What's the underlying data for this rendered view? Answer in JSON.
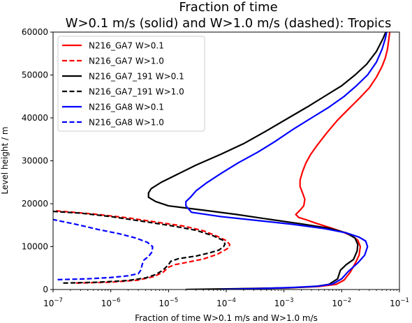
{
  "chart_data": {
    "type": "line",
    "title": "Fraction of time",
    "subtitle": "W>0.1 m/s (solid) and W>1.0 m/s  (dashed): Tropics",
    "xlabel": "Fraction of time W>0.1 m/s and W>1.0 m/s",
    "ylabel": "Level height / m",
    "xscale": "log",
    "xlim": [
      1e-07,
      0.1
    ],
    "ylim": [
      0,
      60000
    ],
    "xticks": [
      {
        "value": 1e-07,
        "base": "10",
        "exp": "−7"
      },
      {
        "value": 1e-06,
        "base": "10",
        "exp": "−6"
      },
      {
        "value": 1e-05,
        "base": "10",
        "exp": "−5"
      },
      {
        "value": 0.0001,
        "base": "10",
        "exp": "−4"
      },
      {
        "value": 0.001,
        "base": "10",
        "exp": "−3"
      },
      {
        "value": 0.01,
        "base": "10",
        "exp": "−2"
      },
      {
        "value": 0.1,
        "base": "10",
        "exp": "−1"
      }
    ],
    "yticks": [
      {
        "value": 0,
        "label": "0"
      },
      {
        "value": 10000,
        "label": "10000"
      },
      {
        "value": 20000,
        "label": "20000"
      },
      {
        "value": 30000,
        "label": "30000"
      },
      {
        "value": 40000,
        "label": "40000"
      },
      {
        "value": 50000,
        "label": "50000"
      },
      {
        "value": 60000,
        "label": "60000"
      }
    ],
    "grid": false,
    "legend_position": "upper-left",
    "series": [
      {
        "name": "N216_GA7 W>0.1",
        "color": "#ff0000",
        "dash": "solid",
        "points": [
          [
            5e-05,
            0
          ],
          [
            0.00025,
            200
          ],
          [
            0.0013,
            400
          ],
          [
            0.004,
            700
          ],
          [
            0.008,
            1200
          ],
          [
            0.011,
            2200
          ],
          [
            0.014,
            4000
          ],
          [
            0.017,
            6000
          ],
          [
            0.02,
            8000
          ],
          [
            0.021,
            10000
          ],
          [
            0.019,
            11500
          ],
          [
            0.015,
            12500
          ],
          [
            0.01,
            13500
          ],
          [
            0.006,
            14500
          ],
          [
            0.0035,
            15500
          ],
          [
            0.0025,
            16200
          ],
          [
            0.0018,
            16800
          ],
          [
            0.0016,
            17500
          ],
          [
            0.0019,
            18500
          ],
          [
            0.0022,
            19500
          ],
          [
            0.0023,
            21000
          ],
          [
            0.0021,
            22500
          ],
          [
            0.0019,
            24000
          ],
          [
            0.0019,
            25500
          ],
          [
            0.0021,
            27500
          ],
          [
            0.0024,
            29500
          ],
          [
            0.0029,
            31500
          ],
          [
            0.0037,
            33500
          ],
          [
            0.0055,
            36500
          ],
          [
            0.0085,
            39500
          ],
          [
            0.013,
            42000
          ],
          [
            0.02,
            44500
          ],
          [
            0.03,
            47000
          ],
          [
            0.04,
            49500
          ],
          [
            0.05,
            52000
          ],
          [
            0.057,
            54000
          ],
          [
            0.062,
            56000
          ],
          [
            0.065,
            58000
          ],
          [
            0.068,
            60000
          ]
        ]
      },
      {
        "name": "N216_GA7 W>1.0",
        "color": "#ff0000",
        "dash": "dashed",
        "points": [
          [
            2.5e-07,
            1500
          ],
          [
            1e-06,
            1700
          ],
          [
            3e-06,
            2200
          ],
          [
            5.5e-06,
            3000
          ],
          [
            8e-06,
            4000
          ],
          [
            1e-05,
            5200
          ],
          [
            1.3e-05,
            5800
          ],
          [
            2.2e-05,
            6400
          ],
          [
            4e-05,
            7100
          ],
          [
            7e-05,
            8200
          ],
          [
            0.00011,
            9700
          ],
          [
            0.000115,
            10500
          ],
          [
            0.0001,
            11400
          ],
          [
            7e-05,
            12400
          ],
          [
            4e-05,
            13700
          ],
          [
            1.8e-05,
            14800
          ],
          [
            7e-06,
            15600
          ],
          [
            2e-06,
            16700
          ],
          [
            5e-07,
            17600
          ],
          [
            1e-07,
            18400
          ]
        ]
      },
      {
        "name": "N216_GA7_191 W>0.1",
        "color": "#000000",
        "dash": "solid",
        "points": [
          [
            2e-05,
            0
          ],
          [
            0.0002,
            200
          ],
          [
            0.0012,
            400
          ],
          [
            0.0035,
            700
          ],
          [
            0.006,
            1200
          ],
          [
            0.0085,
            2500
          ],
          [
            0.0095,
            4500
          ],
          [
            0.012,
            5800
          ],
          [
            0.016,
            7000
          ],
          [
            0.0185,
            9000
          ],
          [
            0.019,
            10500
          ],
          [
            0.017,
            12000
          ],
          [
            0.012,
            13200
          ],
          [
            0.006,
            14300
          ],
          [
            0.002,
            15300
          ],
          [
            0.0006,
            16300
          ],
          [
            0.00015,
            17500
          ],
          [
            4e-05,
            18500
          ],
          [
            1e-05,
            19500
          ],
          [
            6e-06,
            20500
          ],
          [
            4.5e-06,
            21500
          ],
          [
            4.5e-06,
            22500
          ],
          [
            5e-06,
            23500
          ],
          [
            7.5e-06,
            25000
          ],
          [
            1.5e-05,
            27000
          ],
          [
            3e-05,
            29000
          ],
          [
            8e-05,
            31500
          ],
          [
            0.0002,
            34000
          ],
          [
            0.0005,
            37000
          ],
          [
            0.0012,
            40000
          ],
          [
            0.0025,
            42500
          ],
          [
            0.005,
            45000
          ],
          [
            0.01,
            47500
          ],
          [
            0.017,
            50000
          ],
          [
            0.027,
            52500
          ],
          [
            0.04,
            55500
          ],
          [
            0.052,
            58500
          ],
          [
            0.058,
            60000
          ]
        ]
      },
      {
        "name": "N216_GA7_191 W>1.0",
        "color": "#000000",
        "dash": "dashed",
        "points": [
          [
            1.5e-07,
            1500
          ],
          [
            6e-07,
            1700
          ],
          [
            2e-06,
            2100
          ],
          [
            4e-06,
            2700
          ],
          [
            6e-06,
            3500
          ],
          [
            8e-06,
            4500
          ],
          [
            1e-05,
            5800
          ],
          [
            1.1e-05,
            6600
          ],
          [
            1.5e-05,
            7200
          ],
          [
            3e-05,
            7800
          ],
          [
            5e-05,
            8500
          ],
          [
            7.5e-05,
            9200
          ],
          [
            9e-05,
            10000
          ],
          [
            9.5e-05,
            10600
          ],
          [
            9e-05,
            11400
          ],
          [
            6e-05,
            12500
          ],
          [
            3e-05,
            13800
          ],
          [
            1.2e-05,
            14800
          ],
          [
            4e-06,
            15800
          ],
          [
            1e-06,
            17000
          ],
          [
            3e-07,
            17800
          ],
          [
            1e-07,
            18200
          ]
        ]
      },
      {
        "name": "N216_GA8 W>0.1",
        "color": "#0000ff",
        "dash": "solid",
        "points": [
          [
            8e-05,
            0
          ],
          [
            0.00045,
            250
          ],
          [
            0.0015,
            500
          ],
          [
            0.004,
            800
          ],
          [
            0.007,
            1300
          ],
          [
            0.01,
            2500
          ],
          [
            0.013,
            4200
          ],
          [
            0.019,
            6200
          ],
          [
            0.025,
            8000
          ],
          [
            0.028,
            10000
          ],
          [
            0.026,
            11300
          ],
          [
            0.02,
            12200
          ],
          [
            0.012,
            13200
          ],
          [
            0.005,
            14200
          ],
          [
            0.0014,
            15200
          ],
          [
            0.0004,
            16000
          ],
          [
            8e-05,
            17000
          ],
          [
            2.5e-05,
            18000
          ],
          [
            2e-05,
            19500
          ],
          [
            2e-05,
            20500
          ],
          [
            2.4e-05,
            21500
          ],
          [
            3e-05,
            23000
          ],
          [
            4.5e-05,
            24800
          ],
          [
            8e-05,
            27000
          ],
          [
            0.00016,
            29500
          ],
          [
            0.00035,
            32000
          ],
          [
            0.0007,
            34500
          ],
          [
            0.0015,
            37500
          ],
          [
            0.003,
            40000
          ],
          [
            0.006,
            42500
          ],
          [
            0.011,
            45000
          ],
          [
            0.018,
            47500
          ],
          [
            0.028,
            50000
          ],
          [
            0.04,
            53000
          ],
          [
            0.05,
            56000
          ],
          [
            0.057,
            58500
          ],
          [
            0.06,
            60000
          ]
        ]
      },
      {
        "name": "N216_GA8 W>1.0",
        "color": "#0000ff",
        "dash": "dashed",
        "points": [
          [
            1.2e-07,
            2300
          ],
          [
            4e-07,
            2500
          ],
          [
            1e-06,
            2800
          ],
          [
            2e-06,
            3200
          ],
          [
            3e-06,
            3700
          ],
          [
            3.3e-06,
            4500
          ],
          [
            3.5e-06,
            5800
          ],
          [
            3.7e-06,
            6800
          ],
          [
            4.5e-06,
            7700
          ],
          [
            5.2e-06,
            8800
          ],
          [
            5.3e-06,
            10000
          ],
          [
            4.3e-06,
            11000
          ],
          [
            2.7e-06,
            12000
          ],
          [
            1.4e-06,
            13000
          ],
          [
            6e-07,
            14000
          ],
          [
            2.5e-07,
            15200
          ],
          [
            1e-07,
            16300
          ]
        ]
      }
    ]
  }
}
